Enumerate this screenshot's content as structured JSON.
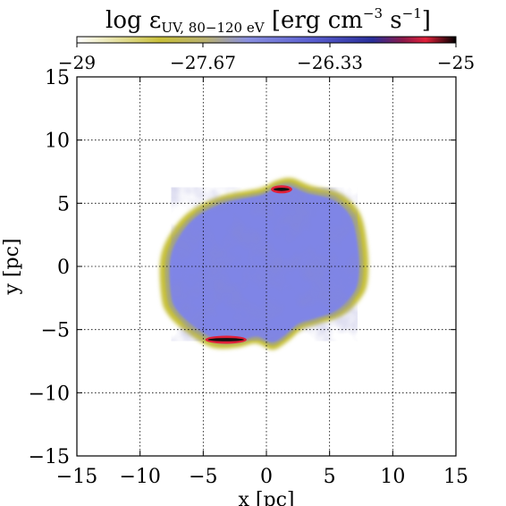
{
  "chart_data": {
    "type": "heatmap",
    "title": "",
    "colorbar": {
      "label_main": "log ε",
      "label_sub": "UV, 80−120 eV",
      "label_units_pre": " [erg cm",
      "label_units_exp1": "−3",
      "label_units_mid": " s",
      "label_units_exp2": "−1",
      "label_units_post": "]",
      "range": [
        -29,
        -25
      ],
      "ticks": [
        -29,
        -27.67,
        -26.33,
        -25
      ],
      "tick_labels": [
        "−29",
        "−27.67",
        "−26.33",
        "−25"
      ],
      "colors": [
        "#ffffff",
        "#c8bf3a",
        "#b8b070",
        "#8a90e0",
        "#5a5fd0",
        "#2a2f9a",
        "#8a1a4a",
        "#e0203a",
        "#000000"
      ]
    },
    "xlabel": "x [pc]",
    "ylabel": "y [pc]",
    "xlim": [
      -15,
      15
    ],
    "ylim": [
      -15,
      15
    ],
    "xticks": [
      -15,
      -10,
      -5,
      0,
      5,
      10,
      15
    ],
    "xtick_labels": [
      "−15",
      "−10",
      "−5",
      "0",
      "5",
      "10",
      "15"
    ],
    "yticks": [
      -15,
      -10,
      -5,
      0,
      5,
      10,
      15
    ],
    "ytick_labels": [
      "−15",
      "−10",
      "−5",
      "0",
      "5",
      "10",
      "15"
    ],
    "grid": true,
    "emission_region": {
      "center": [
        0,
        0
      ],
      "boundary": [
        [
          -8.3,
          -2.5
        ],
        [
          -8.4,
          0.5
        ],
        [
          -7.6,
          2.6
        ],
        [
          -6.0,
          4.4
        ],
        [
          -3.5,
          5.6
        ],
        [
          -0.5,
          6.2
        ],
        [
          0.8,
          6.8
        ],
        [
          2.0,
          7.0
        ],
        [
          3.5,
          6.4
        ],
        [
          5.8,
          5.8
        ],
        [
          7.4,
          4.2
        ],
        [
          8.0,
          1.4
        ],
        [
          8.0,
          -1.2
        ],
        [
          7.4,
          -2.6
        ],
        [
          6.0,
          -3.9
        ],
        [
          4.0,
          -4.6
        ],
        [
          2.8,
          -5.0
        ],
        [
          1.6,
          -6.0
        ],
        [
          0.5,
          -6.6
        ],
        [
          -0.8,
          -6.1
        ],
        [
          -2.2,
          -6.4
        ],
        [
          -3.8,
          -6.5
        ],
        [
          -5.0,
          -6.1
        ],
        [
          -6.6,
          -5.0
        ],
        [
          -7.8,
          -3.8
        ]
      ],
      "hotspots": [
        {
          "x": -3.2,
          "y": -5.8,
          "length": 3.0,
          "value": -25.0
        },
        {
          "x": 1.2,
          "y": 6.1,
          "length": 1.4,
          "value": -25.0
        }
      ]
    }
  }
}
